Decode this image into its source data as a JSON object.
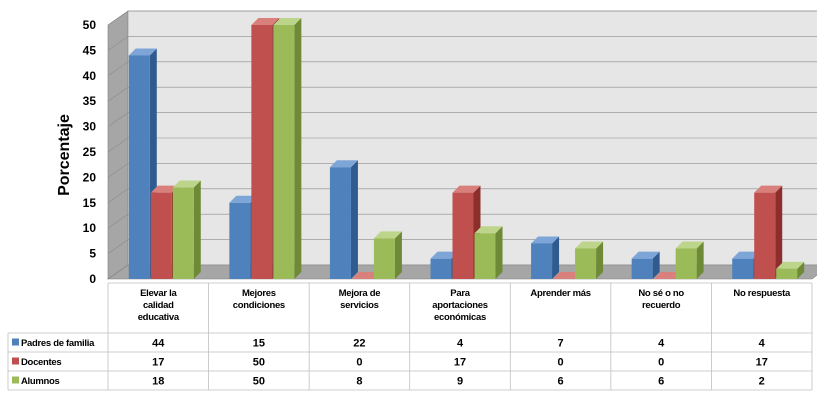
{
  "chart_data": {
    "type": "bar",
    "ylabel": "Porcentaje",
    "ylim": [
      0,
      50
    ],
    "yticks": [
      "0",
      "5",
      "10",
      "15",
      "20",
      "25",
      "30",
      "35",
      "40",
      "45",
      "50"
    ],
    "grid": true,
    "style": "3d-clustered-column-with-data-table",
    "categories": [
      [
        "Elevar la",
        "calidad",
        "educativa"
      ],
      [
        "Mejores",
        "condiciones"
      ],
      [
        "Mejora de",
        "servicios"
      ],
      [
        "Para",
        "aportaciones",
        "económicas"
      ],
      [
        "Aprender más"
      ],
      [
        "No sé o no",
        "recuerdo"
      ],
      [
        "No respuesta"
      ]
    ],
    "series": [
      {
        "name": "Padres de familia",
        "values": [
          44,
          15,
          22,
          4,
          7,
          4,
          4
        ],
        "colors": {
          "front": "#4f81bd",
          "top": "#7ea5d8",
          "side": "#2f5b8f"
        }
      },
      {
        "name": "Docentes",
        "values": [
          17,
          50,
          0,
          17,
          0,
          0,
          17
        ],
        "colors": {
          "front": "#c0504d",
          "top": "#d9807d",
          "side": "#8c2e2b"
        }
      },
      {
        "name": "Alumnos",
        "values": [
          18,
          50,
          8,
          9,
          6,
          6,
          2
        ],
        "colors": {
          "front": "#9bbb59",
          "top": "#bdd58a",
          "side": "#6f8a36"
        }
      }
    ]
  }
}
